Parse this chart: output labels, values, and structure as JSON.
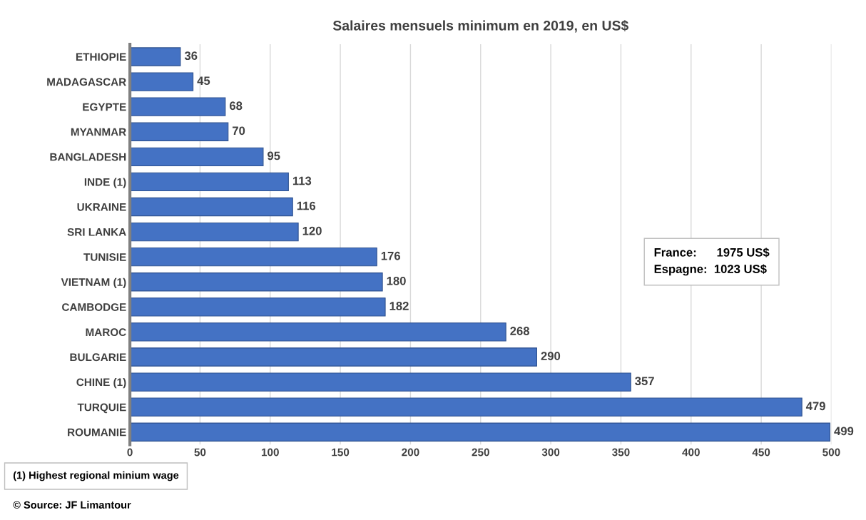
{
  "chart_data": {
    "type": "bar",
    "orientation": "horizontal",
    "title": "Salaires mensuels minimum en 2019, en US$",
    "categories": [
      "ETHIOPIE",
      "MADAGASCAR",
      "EGYPTE",
      "MYANMAR",
      "BANGLADESH",
      "INDE (1)",
      "UKRAINE",
      "SRI LANKA",
      "TUNISIE",
      "VIETNAM (1)",
      "CAMBODGE",
      "MAROC",
      "BULGARIE",
      "CHINE (1)",
      "TURQUIE",
      "ROUMANIE"
    ],
    "values": [
      36,
      45,
      68,
      70,
      95,
      113,
      116,
      120,
      176,
      180,
      182,
      268,
      290,
      357,
      479,
      499
    ],
    "color": "#4472c4",
    "xlim": [
      0,
      500
    ],
    "xticks": [
      0,
      50,
      100,
      150,
      200,
      250,
      300,
      350,
      400,
      450,
      500
    ],
    "grid": "x",
    "data_labels": true,
    "annotations": [
      "France:      1975 US$\nEspagne:  1023 US$",
      "(1) Highest regional minium wage",
      "© Source: JF Limantour"
    ]
  }
}
